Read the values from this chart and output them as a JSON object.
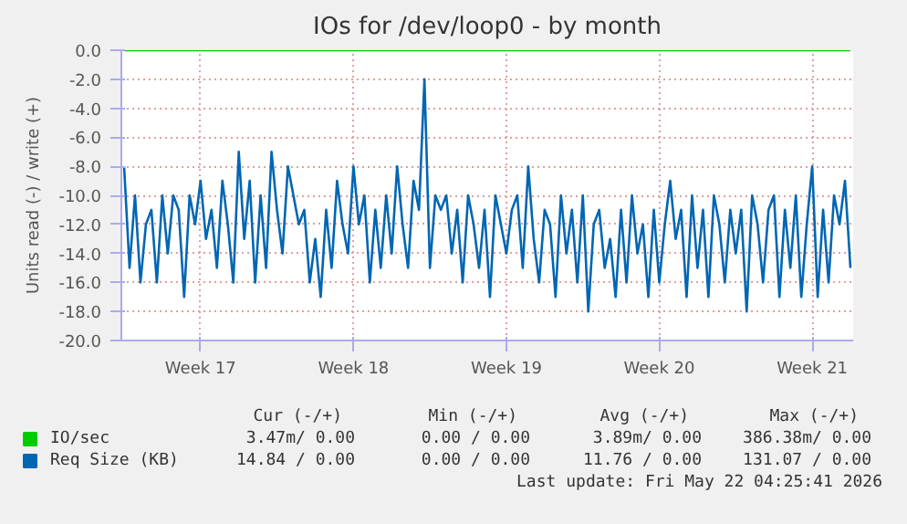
{
  "chart_data": {
    "type": "line",
    "title": "IOs for /dev/loop0 - by month",
    "ylabel": "Units read (-) / write (+)",
    "ylim": [
      -20,
      0
    ],
    "categories": [
      null,
      null,
      null,
      null,
      null,
      null,
      null,
      null,
      null,
      null,
      null,
      null,
      null,
      null,
      "Week 17",
      null,
      null,
      null,
      null,
      null,
      null,
      null,
      null,
      null,
      null,
      null,
      null,
      null,
      null,
      null,
      null,
      null,
      null,
      null,
      null,
      null,
      null,
      null,
      null,
      null,
      null,
      null,
      "Week 18",
      null,
      null,
      null,
      null,
      null,
      null,
      null,
      null,
      null,
      null,
      null,
      null,
      null,
      null,
      null,
      null,
      null,
      null,
      null,
      null,
      null,
      null,
      null,
      null,
      null,
      null,
      null,
      "Week 19",
      null,
      null,
      null,
      null,
      null,
      null,
      null,
      null,
      null,
      null,
      null,
      null,
      null,
      null,
      null,
      null,
      null,
      null,
      null,
      null,
      null,
      null,
      null,
      null,
      null,
      null,
      null,
      "Week 20",
      null,
      null,
      null,
      null,
      null,
      null,
      null,
      null,
      null,
      null,
      null,
      null,
      null,
      null,
      null,
      null,
      null,
      null,
      null,
      null,
      null,
      null,
      null,
      null,
      null,
      null,
      null,
      "Week 21",
      null,
      null,
      null,
      null,
      null,
      null,
      null
    ],
    "yticks": [
      {
        "value": 0,
        "label": "0.0"
      },
      {
        "value": -2,
        "label": "-2.0"
      },
      {
        "value": -4,
        "label": "-4.0"
      },
      {
        "value": -6,
        "label": "-6.0"
      },
      {
        "value": -8,
        "label": "-8.0"
      },
      {
        "value": -10,
        "label": "-10.0"
      },
      {
        "value": -12,
        "label": "-12.0"
      },
      {
        "value": -14,
        "label": "-14.0"
      },
      {
        "value": -16,
        "label": "-16.0"
      },
      {
        "value": -18,
        "label": "-18.0"
      },
      {
        "value": -20,
        "label": "-20.0"
      }
    ],
    "grid": true,
    "legend": "bottom",
    "series": [
      {
        "name": "IO/sec",
        "color": "#00cc00",
        "values": [
          0,
          0,
          0,
          0,
          0,
          0,
          0,
          0,
          0,
          0,
          0,
          0,
          0,
          0,
          0,
          0,
          0,
          0,
          0,
          0,
          0,
          0,
          0,
          0,
          0,
          0,
          0,
          0,
          0,
          0,
          0,
          0,
          0,
          0,
          0,
          0,
          0,
          0,
          0,
          0,
          0,
          0,
          0,
          0,
          0,
          0,
          0,
          0,
          0,
          0,
          0,
          0,
          0,
          0,
          0,
          0,
          0,
          0,
          0,
          0,
          0,
          0,
          0,
          0,
          0,
          0,
          0,
          0,
          0,
          0,
          0,
          0,
          0,
          0,
          0,
          0,
          0,
          0,
          0,
          0,
          0,
          0,
          0,
          0,
          0,
          0,
          0,
          0,
          0,
          0,
          0,
          0,
          0,
          0,
          0,
          0,
          0,
          0,
          0,
          0,
          0,
          0,
          0,
          0,
          0,
          0,
          0,
          0,
          0,
          0,
          0,
          0,
          0,
          0,
          0,
          0,
          0,
          0,
          0,
          0,
          0,
          0,
          0,
          0,
          0,
          0,
          0,
          0,
          0,
          0,
          0,
          0,
          0,
          0
        ]
      },
      {
        "name": "Req Size (KB)",
        "color": "#0066b3",
        "values": [
          -8,
          -15,
          -10,
          -16,
          -12,
          -11,
          -16,
          -10,
          -14,
          -10,
          -11,
          -17,
          -10,
          -12,
          -9,
          -13,
          -11,
          -15,
          -9,
          -12,
          -16,
          -7,
          -13,
          -9,
          -16,
          -10,
          -15,
          -7,
          -11,
          -14,
          -8,
          -10,
          -12,
          -11,
          -16,
          -13,
          -17,
          -11,
          -15,
          -9,
          -12,
          -14,
          -8,
          -12,
          -10,
          -16,
          -11,
          -15,
          -10,
          -14,
          -8,
          -12,
          -15,
          -9,
          -11,
          -2,
          -15,
          -10,
          -11,
          -10,
          -14,
          -11,
          -16,
          -10,
          -12,
          -15,
          -11,
          -17,
          -10,
          -12,
          -14,
          -11,
          -10,
          -15,
          -8,
          -13,
          -16,
          -11,
          -12,
          -17,
          -10,
          -14,
          -11,
          -16,
          -10,
          -18,
          -12,
          -11,
          -15,
          -13,
          -17,
          -11,
          -16,
          -10,
          -14,
          -12,
          -17,
          -11,
          -16,
          -12,
          -9,
          -13,
          -11,
          -17,
          -10,
          -15,
          -11,
          -17,
          -10,
          -12,
          -16,
          -11,
          -14,
          -11,
          -18,
          -10,
          -12,
          -16,
          -11,
          -10,
          -17,
          -11,
          -15,
          -10,
          -17,
          -12,
          -8,
          -17,
          -11,
          -16,
          -10,
          -12,
          -9,
          -15
        ]
      }
    ],
    "annotations": [
      "Cur (-/+)",
      "Min (-/+)",
      "Avg (-/+)",
      "Max (-/+)",
      "3.47m/ 0.00",
      "0.00 / 0.00",
      "3.89m/ 0.00",
      "386.38m/ 0.00",
      "14.84 / 0.00",
      "0.00 / 0.00",
      "11.76 / 0.00",
      "131.07 / 0.00",
      "Last update: Fri May 22 04:25:41 2026"
    ]
  }
}
